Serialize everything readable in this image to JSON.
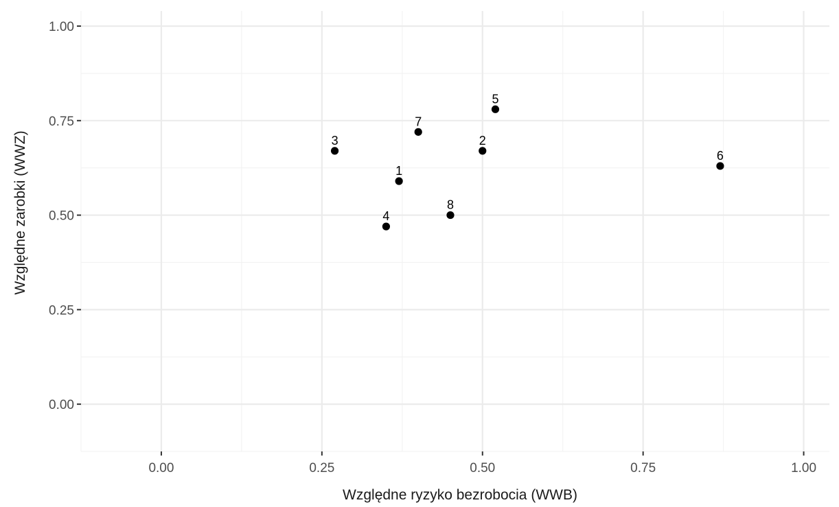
{
  "chart_data": {
    "type": "scatter",
    "title": "",
    "xlabel": "Względne ryzyko bezrobocia (WWB)",
    "ylabel": "Względne zarobki (WWZ)",
    "xlim": [
      -0.125,
      1.04
    ],
    "ylim": [
      -0.125,
      1.04
    ],
    "x_ticks": [
      {
        "value": 0.0,
        "label": "0.00"
      },
      {
        "value": 0.25,
        "label": "0.25"
      },
      {
        "value": 0.5,
        "label": "0.50"
      },
      {
        "value": 0.75,
        "label": "0.75"
      },
      {
        "value": 1.0,
        "label": "1.00"
      }
    ],
    "y_ticks": [
      {
        "value": 0.0,
        "label": "0.00"
      },
      {
        "value": 0.25,
        "label": "0.25"
      },
      {
        "value": 0.5,
        "label": "0.50"
      },
      {
        "value": 0.75,
        "label": "0.75"
      },
      {
        "value": 1.0,
        "label": "1.00"
      }
    ],
    "minor_breaks_x": [
      -0.125,
      0.125,
      0.375,
      0.625,
      0.875
    ],
    "minor_breaks_y": [
      -0.125,
      0.125,
      0.375,
      0.625,
      0.875
    ],
    "grid": true,
    "legend": "none",
    "colors": {
      "background": "#ffffff",
      "major_grid": "#ebebeb",
      "minor_grid": "#f2f2f2",
      "point": "#000000",
      "tick_text": "#4d4d4d",
      "axis_title": "#1a1a1a",
      "tick_mark": "#333333"
    },
    "points": [
      {
        "label": "1",
        "x": 0.37,
        "y": 0.59
      },
      {
        "label": "2",
        "x": 0.5,
        "y": 0.67
      },
      {
        "label": "3",
        "x": 0.27,
        "y": 0.67
      },
      {
        "label": "4",
        "x": 0.35,
        "y": 0.47
      },
      {
        "label": "5",
        "x": 0.52,
        "y": 0.78
      },
      {
        "label": "6",
        "x": 0.87,
        "y": 0.63
      },
      {
        "label": "7",
        "x": 0.4,
        "y": 0.72
      },
      {
        "label": "8",
        "x": 0.45,
        "y": 0.5
      }
    ]
  }
}
